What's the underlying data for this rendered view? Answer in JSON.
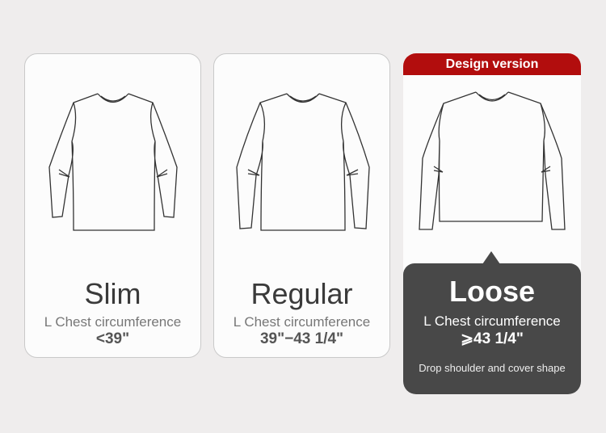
{
  "cards": [
    {
      "name": "Slim",
      "label": "L Chest circumference",
      "value": "<39\""
    },
    {
      "name": "Regular",
      "label": "L Chest circumference",
      "value": "39\"−43 1/4\""
    },
    {
      "name": "Loose",
      "label": "L Chest circumference",
      "value": "⩾43 1/4\"",
      "badge": "Design version",
      "note": "Drop shoulder and cover shape"
    }
  ],
  "colors": {
    "accent": "#b20d0d",
    "dark": "#484848"
  }
}
